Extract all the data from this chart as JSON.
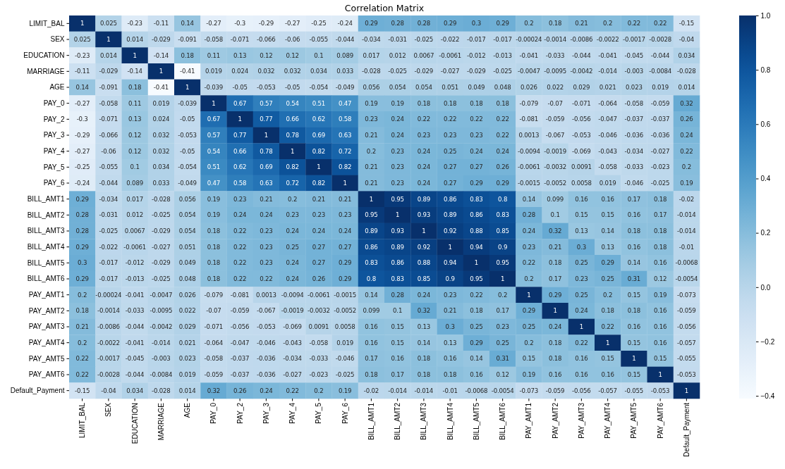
{
  "chart_data": {
    "type": "heatmap",
    "title": "Correlation Matrix",
    "categories": [
      "LIMIT_BAL",
      "SEX",
      "EDUCATION",
      "MARRIAGE",
      "AGE",
      "PAY_0",
      "PAY_2",
      "PAY_3",
      "PAY_4",
      "PAY_5",
      "PAY_6",
      "BILL_AMT1",
      "BILL_AMT2",
      "BILL_AMT3",
      "BILL_AMT4",
      "BILL_AMT5",
      "BILL_AMT6",
      "PAY_AMT1",
      "PAY_AMT2",
      "PAY_AMT3",
      "PAY_AMT4",
      "PAY_AMT5",
      "PAY_AMT6",
      "Default_Payment"
    ],
    "y_categories": [
      "LIMIT_BAL",
      "SEX",
      "EDUCATION",
      "MARRIAGE",
      "AGE",
      "PAY_0",
      "PAY_2",
      "PAY_3",
      "PAY_4",
      "PAY_5",
      "PAY_6",
      "BILL_AMT1",
      "BILL_AMT2",
      "BILL_AMT3",
      "BILL_AMT4",
      "BILL_AMT5",
      "BILL_AMT6",
      "PAY_AMT1",
      "PAY_AMT2",
      "PAY_AMT3",
      "PAY_AMT4",
      "PAY_AMT5",
      "PAY_AMT6",
      "Default_Payment"
    ],
    "cells": [
      [
        1,
        0.025,
        -0.23,
        -0.11,
        0.14,
        -0.27,
        -0.3,
        -0.29,
        -0.27,
        -0.25,
        -0.24,
        0.29,
        0.28,
        0.28,
        0.29,
        0.3,
        0.29,
        0.2,
        0.18,
        0.21,
        0.2,
        0.22,
        0.22,
        -0.15
      ],
      [
        0.025,
        1,
        0.014,
        -0.029,
        -0.091,
        -0.058,
        -0.071,
        -0.066,
        -0.06,
        -0.055,
        -0.044,
        -0.034,
        -0.031,
        -0.025,
        -0.022,
        -0.017,
        -0.017,
        -0.00024,
        -0.0014,
        -0.0086,
        -0.0022,
        -0.0017,
        -0.0028,
        -0.04
      ],
      [
        -0.23,
        0.014,
        1,
        -0.14,
        0.18,
        0.11,
        0.13,
        0.12,
        0.12,
        0.1,
        0.089,
        0.017,
        0.012,
        0.0067,
        -0.0061,
        -0.012,
        -0.013,
        -0.041,
        -0.033,
        -0.044,
        -0.041,
        -0.045,
        -0.044,
        0.034
      ],
      [
        -0.11,
        -0.029,
        -0.14,
        1,
        -0.41,
        0.019,
        0.024,
        0.032,
        0.032,
        0.034,
        0.033,
        -0.028,
        -0.025,
        -0.029,
        -0.027,
        -0.029,
        -0.025,
        -0.0047,
        -0.0095,
        -0.0042,
        -0.014,
        -0.003,
        -0.0084,
        -0.028
      ],
      [
        0.14,
        -0.091,
        0.18,
        -0.41,
        1,
        -0.039,
        -0.05,
        -0.053,
        -0.05,
        -0.054,
        -0.049,
        0.056,
        0.054,
        0.054,
        0.051,
        0.049,
        0.048,
        0.026,
        0.022,
        0.029,
        0.021,
        0.023,
        0.019,
        0.014
      ],
      [
        -0.27,
        -0.058,
        0.11,
        0.019,
        -0.039,
        1,
        0.67,
        0.57,
        0.54,
        0.51,
        0.47,
        0.19,
        0.19,
        0.18,
        0.18,
        0.18,
        0.18,
        -0.079,
        -0.07,
        -0.071,
        -0.064,
        -0.058,
        -0.059,
        0.32
      ],
      [
        -0.3,
        -0.071,
        0.13,
        0.024,
        -0.05,
        0.67,
        1,
        0.77,
        0.66,
        0.62,
        0.58,
        0.23,
        0.24,
        0.22,
        0.22,
        0.22,
        0.22,
        -0.081,
        -0.059,
        -0.056,
        -0.047,
        -0.037,
        -0.037,
        0.26
      ],
      [
        -0.29,
        -0.066,
        0.12,
        0.032,
        -0.053,
        0.57,
        0.77,
        1,
        0.78,
        0.69,
        0.63,
        0.21,
        0.24,
        0.23,
        0.23,
        0.23,
        0.22,
        0.0013,
        -0.067,
        -0.053,
        -0.046,
        -0.036,
        -0.036,
        0.24
      ],
      [
        -0.27,
        -0.06,
        0.12,
        0.032,
        -0.05,
        0.54,
        0.66,
        0.78,
        1,
        0.82,
        0.72,
        0.2,
        0.23,
        0.24,
        0.25,
        0.24,
        0.24,
        -0.0094,
        -0.0019,
        -0.069,
        -0.043,
        -0.034,
        -0.027,
        0.22
      ],
      [
        -0.25,
        -0.055,
        0.1,
        0.034,
        -0.054,
        0.51,
        0.62,
        0.69,
        0.82,
        1,
        0.82,
        0.21,
        0.23,
        0.24,
        0.27,
        0.27,
        0.26,
        -0.0061,
        -0.0032,
        0.0091,
        -0.058,
        -0.033,
        -0.023,
        0.2
      ],
      [
        -0.24,
        -0.044,
        0.089,
        0.033,
        -0.049,
        0.47,
        0.58,
        0.63,
        0.72,
        0.82,
        1,
        0.21,
        0.23,
        0.24,
        0.27,
        0.29,
        0.29,
        -0.0015,
        -0.0052,
        0.0058,
        0.019,
        -0.046,
        -0.025,
        0.19
      ],
      [
        0.29,
        -0.034,
        0.017,
        -0.028,
        0.056,
        0.19,
        0.23,
        0.21,
        0.2,
        0.21,
        0.21,
        1,
        0.95,
        0.89,
        0.86,
        0.83,
        0.8,
        0.14,
        0.099,
        0.16,
        0.16,
        0.17,
        0.18,
        -0.02
      ],
      [
        0.28,
        -0.031,
        0.012,
        -0.025,
        0.054,
        0.19,
        0.24,
        0.24,
        0.23,
        0.23,
        0.23,
        0.95,
        1,
        0.93,
        0.89,
        0.86,
        0.83,
        0.28,
        0.1,
        0.15,
        0.15,
        0.16,
        0.17,
        -0.014
      ],
      [
        0.28,
        -0.025,
        0.0067,
        -0.029,
        0.054,
        0.18,
        0.22,
        0.23,
        0.24,
        0.24,
        0.24,
        0.89,
        0.93,
        1,
        0.92,
        0.88,
        0.85,
        0.24,
        0.32,
        0.13,
        0.14,
        0.18,
        0.18,
        -0.014
      ],
      [
        0.29,
        -0.022,
        -0.0061,
        -0.027,
        0.051,
        0.18,
        0.22,
        0.23,
        0.25,
        0.27,
        0.27,
        0.86,
        0.89,
        0.92,
        1,
        0.94,
        0.9,
        0.23,
        0.21,
        0.3,
        0.13,
        0.16,
        0.18,
        -0.01
      ],
      [
        0.3,
        -0.017,
        -0.012,
        -0.029,
        0.049,
        0.18,
        0.22,
        0.23,
        0.24,
        0.27,
        0.29,
        0.83,
        0.86,
        0.88,
        0.94,
        1,
        0.95,
        0.22,
        0.18,
        0.25,
        0.29,
        0.14,
        0.16,
        -0.0068
      ],
      [
        0.29,
        -0.017,
        -0.013,
        -0.025,
        0.048,
        0.18,
        0.22,
        0.22,
        0.24,
        0.26,
        0.29,
        0.8,
        0.83,
        0.85,
        0.9,
        0.95,
        1,
        0.2,
        0.17,
        0.23,
        0.25,
        0.31,
        0.12,
        -0.0054
      ],
      [
        0.2,
        -0.00024,
        -0.041,
        -0.0047,
        0.026,
        -0.079,
        -0.081,
        0.0013,
        -0.0094,
        -0.0061,
        -0.0015,
        0.14,
        0.28,
        0.24,
        0.23,
        0.22,
        0.2,
        1,
        0.29,
        0.25,
        0.2,
        0.15,
        0.19,
        -0.073
      ],
      [
        0.18,
        -0.0014,
        -0.033,
        -0.0095,
        0.022,
        -0.07,
        -0.059,
        -0.067,
        -0.0019,
        -0.0032,
        -0.0052,
        0.099,
        0.1,
        0.32,
        0.21,
        0.18,
        0.17,
        0.29,
        1,
        0.24,
        0.18,
        0.18,
        0.16,
        -0.059
      ],
      [
        0.21,
        -0.0086,
        -0.044,
        -0.0042,
        0.029,
        -0.071,
        -0.056,
        -0.053,
        -0.069,
        0.0091,
        0.0058,
        0.16,
        0.15,
        0.13,
        0.3,
        0.25,
        0.23,
        0.25,
        0.24,
        1,
        0.22,
        0.16,
        0.16,
        -0.056
      ],
      [
        0.2,
        -0.0022,
        -0.041,
        -0.014,
        0.021,
        -0.064,
        -0.047,
        -0.046,
        -0.043,
        -0.058,
        0.019,
        0.16,
        0.15,
        0.14,
        0.13,
        0.29,
        0.25,
        0.2,
        0.18,
        0.22,
        1,
        0.15,
        0.16,
        -0.057
      ],
      [
        0.22,
        -0.0017,
        -0.045,
        -0.003,
        0.023,
        -0.058,
        -0.037,
        -0.036,
        -0.034,
        -0.033,
        -0.046,
        0.17,
        0.16,
        0.18,
        0.16,
        0.14,
        0.31,
        0.15,
        0.18,
        0.16,
        0.15,
        1,
        0.15,
        -0.055
      ],
      [
        0.22,
        -0.0028,
        -0.044,
        -0.0084,
        0.019,
        -0.059,
        -0.037,
        -0.036,
        -0.027,
        -0.023,
        -0.025,
        0.18,
        0.17,
        0.18,
        0.18,
        0.16,
        0.12,
        0.19,
        0.16,
        0.16,
        0.16,
        0.15,
        1,
        -0.053
      ],
      [
        -0.15,
        -0.04,
        0.034,
        -0.028,
        0.014,
        0.32,
        0.26,
        0.24,
        0.22,
        0.2,
        0.19,
        -0.02,
        -0.014,
        -0.014,
        -0.01,
        -0.0068,
        -0.0054,
        -0.073,
        -0.059,
        -0.056,
        -0.057,
        -0.055,
        -0.053,
        1
      ]
    ],
    "data_labels": true,
    "clim": [
      -0.41,
      1
    ],
    "cticks": [
      {
        "value": -0.4,
        "label": "−0.4"
      },
      {
        "value": -0.2,
        "label": "−0.2"
      },
      {
        "value": 0,
        "label": "0.0"
      },
      {
        "value": 0.2,
        "label": "0.2"
      },
      {
        "value": 0.4,
        "label": "0.4"
      },
      {
        "value": 0.6,
        "label": "0.6"
      },
      {
        "value": 0.8,
        "label": "0.8"
      },
      {
        "value": 1,
        "label": "1.0"
      }
    ]
  }
}
